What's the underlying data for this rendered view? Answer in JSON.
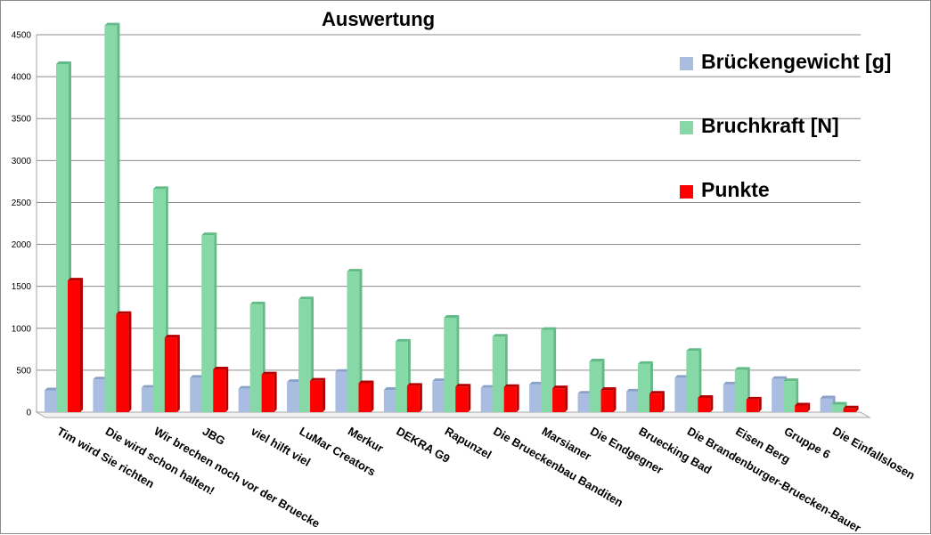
{
  "chart_data": {
    "type": "bar",
    "title": "Auswertung",
    "xlabel": "",
    "ylabel": "",
    "ylim": [
      0,
      4500
    ],
    "yticks": [
      0,
      500,
      1000,
      1500,
      2000,
      2500,
      3000,
      3500,
      4000,
      4500
    ],
    "grid": true,
    "legend_position": "right",
    "categories": [
      "Tim wird Sie richten",
      "Die wird schon halten!",
      "Wir brechen noch vor der Bruecke",
      "JBG",
      "viel hilft viel",
      "LuMar Creators",
      "Merkur",
      "DEKRA G9",
      "Rapunzel",
      "Die Brueckenbau Banditen",
      "Marsianer",
      "Die Endgegner",
      "Bruecking Bad",
      "Die Brandenburger-Bruecken-Bauer",
      "Eisen Berg",
      "Gruppe 6",
      "Die Einfallslosen"
    ],
    "series": [
      {
        "name": "Brückengewicht [g]",
        "color": "#a8bde0",
        "side_color": "#8aa2c8",
        "values": [
          260,
          390,
          290,
          410,
          280,
          360,
          480,
          265,
          370,
          290,
          330,
          220,
          245,
          410,
          330,
          395,
          165
        ]
      },
      {
        "name": "Bruchkraft [N]",
        "color": "#86d9a6",
        "side_color": "#62ba86",
        "values": [
          4150,
          4610,
          2660,
          2110,
          1285,
          1345,
          1675,
          840,
          1125,
          900,
          980,
          605,
          575,
          730,
          505,
          370,
          90
        ]
      },
      {
        "name": "Punkte",
        "color": "#ff0000",
        "side_color": "#b40000",
        "values": [
          1570,
          1170,
          890,
          510,
          450,
          375,
          345,
          315,
          305,
          300,
          285,
          265,
          220,
          170,
          150,
          80,
          45
        ]
      }
    ]
  }
}
